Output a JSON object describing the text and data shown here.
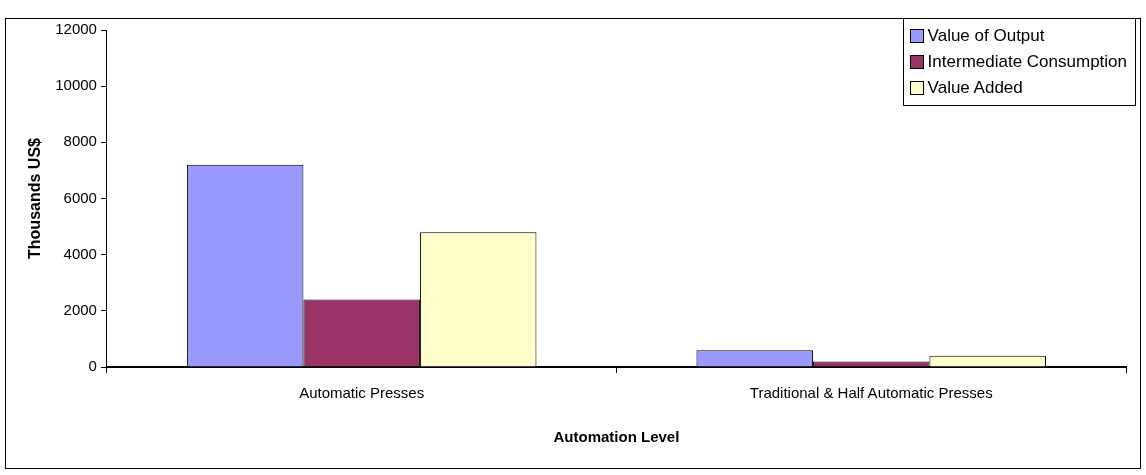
{
  "chart_data": {
    "type": "bar",
    "xlabel": "Automation Level",
    "ylabel": "Thousands US$",
    "categories": [
      "Automatic Presses",
      "Traditional & Half Automatic Presses"
    ],
    "series": [
      {
        "name": "Value of Output",
        "color": "#9999ff",
        "values": [
          7200,
          600
        ]
      },
      {
        "name": "Intermediate Consumption",
        "color": "#993366",
        "values": [
          2400,
          200
        ]
      },
      {
        "name": "Value Added",
        "color": "#ffffcc",
        "values": [
          4800,
          400
        ]
      }
    ],
    "ylim": [
      0,
      12000
    ],
    "yticks": [
      0,
      2000,
      4000,
      6000,
      8000,
      10000,
      12000
    ],
    "grid": false,
    "legend": "top right"
  }
}
